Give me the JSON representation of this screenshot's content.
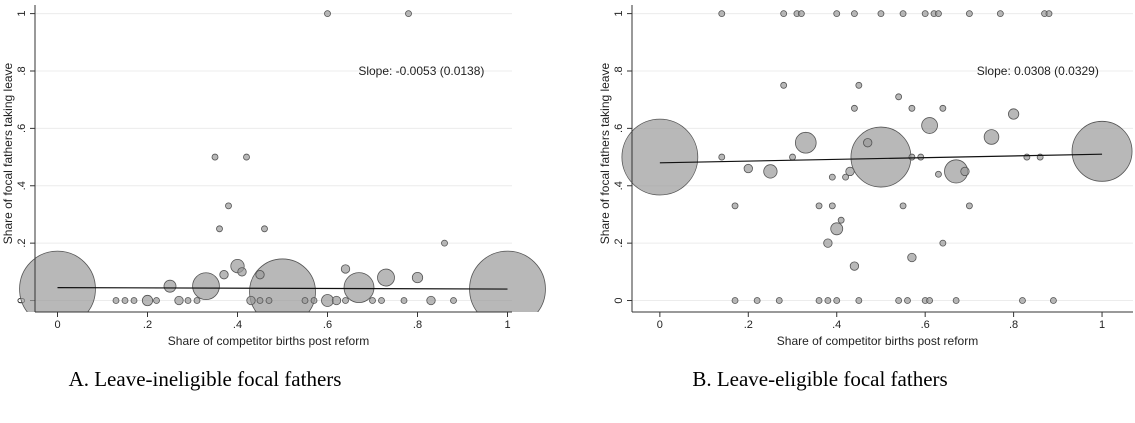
{
  "chart_data": [
    {
      "type": "bubble",
      "caption": "A. Leave-ineligible focal fathers",
      "xlabel": "Share of competitor births post reform",
      "ylabel": "Share of focal fathers taking leave",
      "annotation": "Slope: -0.0053 (0.0138)",
      "color": "#9a9a9a",
      "grid": true,
      "xlim": [
        -0.05,
        1.01
      ],
      "ylim": [
        -0.04,
        1.03
      ],
      "xticks": [
        0,
        {
          "value": 0.2,
          "label": ".2"
        },
        {
          "value": 0.4,
          "label": ".4"
        },
        {
          "value": 0.6,
          "label": ".6"
        },
        {
          "value": 0.8,
          "label": ".8"
        },
        1
      ],
      "yticks": [
        0,
        {
          "value": 0.2,
          "label": ".2"
        },
        {
          "value": 0.4,
          "label": ".4"
        },
        {
          "value": 0.6,
          "label": ".6"
        },
        {
          "value": 0.8,
          "label": ".8"
        },
        1
      ],
      "x": [
        0,
        1,
        0.5,
        0.6,
        0.78,
        0.35,
        0.42,
        0.38,
        0.36,
        0.46,
        0.86,
        0.4,
        0.41,
        0.37,
        0.45,
        0.25,
        0.33,
        0.67,
        0.64,
        0.73,
        0.8,
        0.2,
        0.13,
        0.15,
        0.17,
        0.22,
        0.27,
        0.29,
        0.31,
        0.43,
        0.45,
        0.47,
        0.55,
        0.57,
        0.6,
        0.62,
        0.64,
        0.7,
        0.72,
        0.77,
        0.83,
        0.88
      ],
      "y": [
        0.04,
        0.04,
        0.03,
        1,
        1,
        0.5,
        0.5,
        0.33,
        0.25,
        0.25,
        0.2,
        0.12,
        0.1,
        0.09,
        0.09,
        0.05,
        0.05,
        0.045,
        0.11,
        0.08,
        0.08,
        0,
        0,
        0,
        0,
        0,
        0,
        0,
        0,
        0,
        0,
        0,
        0,
        0,
        0,
        0,
        0,
        0,
        0,
        0,
        0,
        0
      ],
      "sizes": [
        160,
        160,
        121,
        1,
        1,
        1,
        1,
        1,
        1,
        1,
        1,
        5,
        2,
        2,
        2,
        4,
        20,
        25,
        2,
        8,
        3,
        3,
        1,
        1,
        1,
        1,
        2,
        1,
        1,
        2,
        1,
        1,
        1,
        1,
        4,
        2,
        1,
        1,
        1,
        1,
        2,
        1
      ],
      "fit": {
        "x": [
          0,
          1
        ],
        "y": [
          0.045,
          0.04
        ]
      }
    },
    {
      "type": "bubble",
      "caption": "B. Leave-eligible focal fathers",
      "xlabel": "Share of competitor births post reform",
      "ylabel": "Share of focal fathers taking leave",
      "annotation": "Slope: 0.0308 (0.0329)",
      "color": "#9a9a9a",
      "grid": true,
      "xlim": [
        -0.063,
        1.07
      ],
      "ylim": [
        -0.04,
        1.03
      ],
      "xticks": [
        0,
        {
          "value": 0.2,
          "label": ".2"
        },
        {
          "value": 0.4,
          "label": ".4"
        },
        {
          "value": 0.6,
          "label": ".6"
        },
        {
          "value": 0.8,
          "label": ".8"
        },
        1
      ],
      "yticks": [
        0,
        {
          "value": 0.2,
          "label": ".2"
        },
        {
          "value": 0.4,
          "label": ".4"
        },
        {
          "value": 0.6,
          "label": ".6"
        },
        {
          "value": 0.8,
          "label": ".8"
        },
        1
      ],
      "x": [
        0,
        0.5,
        1,
        0.33,
        0.61,
        0.67,
        0.75,
        0.8,
        0.25,
        0.2,
        0.4,
        0.38,
        0.44,
        0.57,
        0.45,
        0.28,
        0.54,
        0.57,
        0.64,
        0.44,
        0.47,
        0.41,
        0.42,
        0.43,
        0.39,
        0.36,
        0.39,
        0.55,
        0.7,
        0.17,
        0.63,
        0.69,
        0.64,
        0.3,
        0.14,
        0.83,
        0.86,
        0.57,
        0.59,
        0.14,
        0.28,
        0.31,
        0.32,
        0.4,
        0.44,
        0.5,
        0.55,
        0.6,
        0.62,
        0.63,
        0.7,
        0.77,
        0.87,
        0.88,
        0.17,
        0.22,
        0.27,
        0.36,
        0.38,
        0.4,
        0.45,
        0.54,
        0.56,
        0.6,
        0.61,
        0.67,
        0.82,
        0.89
      ],
      "y": [
        0.5,
        0.5,
        0.52,
        0.55,
        0.61,
        0.45,
        0.57,
        0.65,
        0.45,
        0.46,
        0.25,
        0.2,
        0.12,
        0.15,
        0.75,
        0.75,
        0.71,
        0.67,
        0.67,
        0.67,
        0.55,
        0.28,
        0.43,
        0.45,
        0.43,
        0.33,
        0.33,
        0.33,
        0.33,
        0.33,
        0.44,
        0.45,
        0.2,
        0.5,
        0.5,
        0.5,
        0.5,
        0.5,
        0.5,
        1,
        1,
        1,
        1,
        1,
        1,
        1,
        1,
        1,
        1,
        1,
        1,
        1,
        1,
        1,
        0,
        0,
        0,
        0,
        0,
        0,
        0,
        0,
        0,
        0,
        0,
        0,
        0,
        0
      ],
      "sizes": [
        160,
        100,
        100,
        12,
        7,
        15,
        6,
        3,
        5,
        2,
        4,
        2,
        2,
        2,
        1,
        1,
        1,
        1,
        1,
        1,
        2,
        1,
        1,
        2,
        1,
        1,
        1,
        1,
        1,
        1,
        1,
        2,
        1,
        1,
        1,
        1,
        1,
        1,
        1,
        1,
        1,
        1,
        1,
        1,
        1,
        1,
        1,
        1,
        1,
        1,
        1,
        1,
        1,
        1,
        1,
        1,
        1,
        1,
        1,
        1,
        1,
        1,
        1,
        1,
        1,
        1,
        1,
        1
      ],
      "fit": {
        "x": [
          0,
          1
        ],
        "y": [
          0.48,
          0.51
        ]
      }
    }
  ]
}
